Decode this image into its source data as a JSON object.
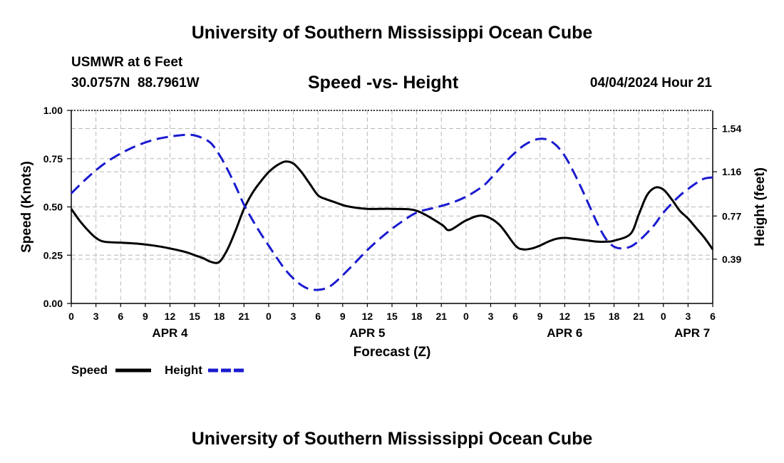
{
  "header": {
    "title": "University of Southern Mississippi Ocean Cube",
    "station": "USMWR at 6 Feet",
    "coords": "30.0757N  88.7961W",
    "subtitle": "Speed -vs- Height",
    "datetime": "04/04/2024 Hour 21"
  },
  "footer": {
    "title": "University of Southern Mississippi Ocean Cube"
  },
  "legend": {
    "speed_label": "Speed",
    "height_label": "Height"
  },
  "colors": {
    "speed": "#000000",
    "height": "#1a1ad0",
    "grid": "#b8b8b8"
  },
  "chart_data": {
    "type": "line",
    "title": "Speed -vs- Height",
    "xlabel": "Forecast (Z)",
    "ylabel_left": "Speed (Knots)",
    "ylabel_right": "Height (feet)",
    "x_unit": "hours since APR 4 00Z",
    "xlim": [
      0,
      78
    ],
    "ylim_left": [
      0,
      1.0
    ],
    "ylim_right": [
      0,
      1.7
    ],
    "yticks_left": [
      0.0,
      0.25,
      0.5,
      0.75,
      1.0
    ],
    "ytick_labels_left": [
      "0.00",
      "0.25",
      "0.50",
      "0.75",
      "1.00"
    ],
    "yticks_right": [
      0.39,
      0.77,
      1.16,
      1.54
    ],
    "ytick_labels_right": [
      "0.39",
      "0.77",
      "1.16",
      "1.54"
    ],
    "xticks": [
      0,
      3,
      6,
      9,
      12,
      15,
      18,
      21,
      24,
      27,
      30,
      33,
      36,
      39,
      42,
      45,
      48,
      51,
      54,
      57,
      60,
      63,
      66,
      69,
      72,
      75,
      78
    ],
    "xtick_labels": [
      "0",
      "3",
      "6",
      "9",
      "12",
      "15",
      "18",
      "21",
      "0",
      "3",
      "6",
      "9",
      "12",
      "15",
      "18",
      "21",
      "0",
      "3",
      "6",
      "9",
      "12",
      "15",
      "18",
      "21",
      "0",
      "3",
      "6"
    ],
    "date_labels": [
      {
        "label": "APR 4",
        "x": 12
      },
      {
        "label": "APR 5",
        "x": 36
      },
      {
        "label": "APR 6",
        "x": 60
      },
      {
        "label": "APR 7",
        "x": 75.5
      }
    ],
    "grid": true,
    "series": [
      {
        "name": "Speed",
        "axis": "left",
        "style": "solid",
        "x": [
          0,
          1,
          2,
          3,
          4,
          6,
          8,
          10,
          12,
          14,
          15,
          16,
          17,
          18,
          19,
          20,
          21,
          22,
          23,
          24,
          25,
          26,
          27,
          28,
          29,
          30,
          31,
          32,
          33,
          34,
          36,
          39,
          42,
          45,
          46,
          48,
          50,
          52,
          54,
          55,
          56,
          57,
          58,
          59,
          60,
          61,
          62,
          63,
          64,
          65,
          66,
          68,
          69,
          70,
          71,
          72,
          73,
          74,
          75,
          76,
          77,
          78
        ],
        "y": [
          0.49,
          0.43,
          0.38,
          0.34,
          0.32,
          0.315,
          0.31,
          0.3,
          0.285,
          0.265,
          0.25,
          0.235,
          0.215,
          0.215,
          0.28,
          0.38,
          0.49,
          0.57,
          0.63,
          0.68,
          0.715,
          0.735,
          0.725,
          0.68,
          0.62,
          0.56,
          0.54,
          0.525,
          0.51,
          0.5,
          0.49,
          0.49,
          0.48,
          0.41,
          0.38,
          0.43,
          0.455,
          0.41,
          0.3,
          0.28,
          0.285,
          0.3,
          0.32,
          0.335,
          0.34,
          0.335,
          0.33,
          0.325,
          0.32,
          0.32,
          0.325,
          0.36,
          0.46,
          0.56,
          0.6,
          0.59,
          0.54,
          0.48,
          0.44,
          0.39,
          0.34,
          0.28
        ]
      },
      {
        "name": "Height",
        "axis": "right",
        "style": "dashed",
        "x": [
          0,
          2,
          4,
          6,
          8,
          10,
          12,
          14,
          15,
          16,
          17,
          18,
          19,
          20,
          21,
          22,
          23,
          24,
          25,
          26,
          27,
          28,
          29,
          30,
          31,
          32,
          34,
          36,
          38,
          40,
          42,
          44,
          46,
          48,
          50,
          51,
          52,
          53,
          54,
          55,
          56,
          57,
          58,
          59,
          60,
          61,
          62,
          63,
          64,
          65,
          66,
          67,
          68,
          69,
          70,
          71,
          72,
          74,
          76,
          77,
          78
        ],
        "y": [
          0.97,
          1.11,
          1.23,
          1.32,
          1.39,
          1.44,
          1.47,
          1.485,
          1.48,
          1.455,
          1.41,
          1.31,
          1.18,
          1.03,
          0.87,
          0.74,
          0.62,
          0.51,
          0.4,
          0.3,
          0.22,
          0.16,
          0.125,
          0.12,
          0.135,
          0.18,
          0.32,
          0.47,
          0.6,
          0.71,
          0.8,
          0.84,
          0.88,
          0.94,
          1.03,
          1.1,
          1.18,
          1.26,
          1.33,
          1.39,
          1.43,
          1.45,
          1.44,
          1.39,
          1.3,
          1.17,
          1.02,
          0.86,
          0.7,
          0.57,
          0.5,
          0.485,
          0.5,
          0.55,
          0.62,
          0.7,
          0.8,
          0.95,
          1.06,
          1.1,
          1.11
        ]
      }
    ]
  }
}
